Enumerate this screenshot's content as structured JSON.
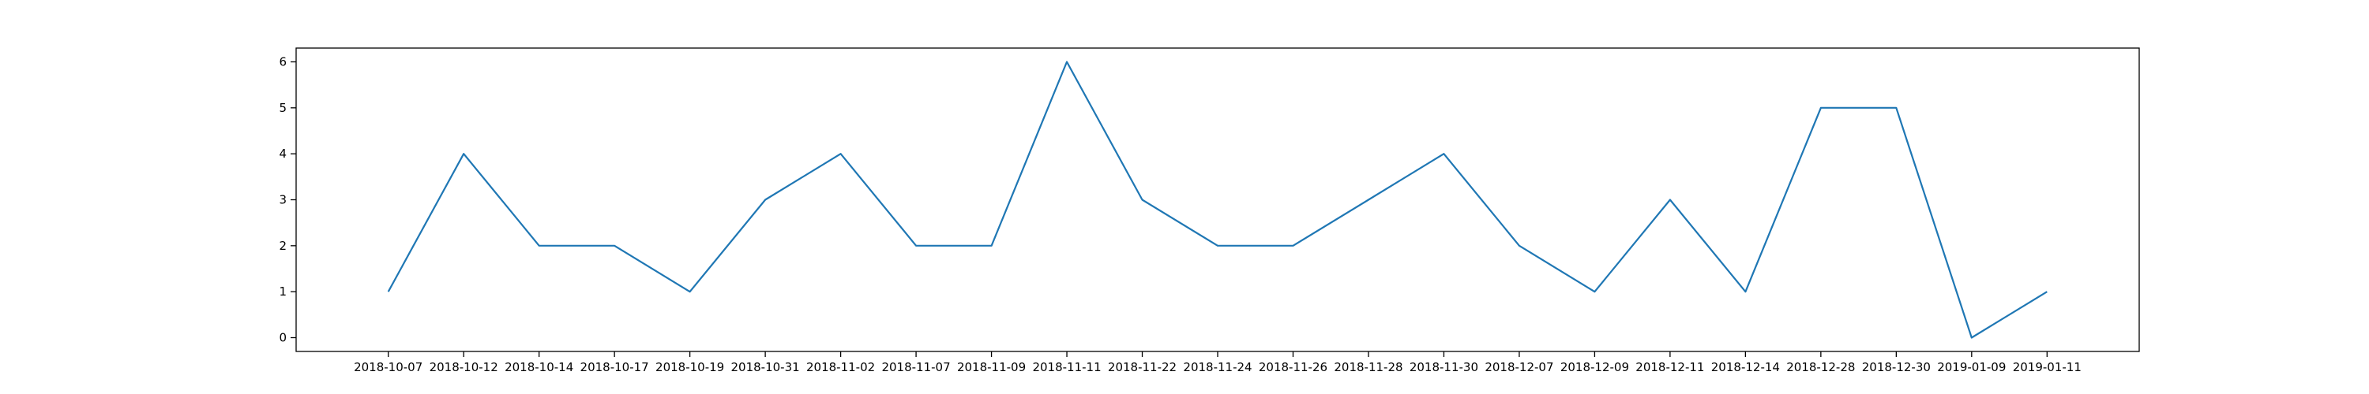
{
  "chart_data": {
    "type": "line",
    "categories": [
      "2018-10-07",
      "2018-10-12",
      "2018-10-14",
      "2018-10-17",
      "2018-10-19",
      "2018-10-31",
      "2018-11-02",
      "2018-11-07",
      "2018-11-09",
      "2018-11-11",
      "2018-11-22",
      "2018-11-24",
      "2018-11-26",
      "2018-11-28",
      "2018-11-30",
      "2018-12-07",
      "2018-12-09",
      "2018-12-11",
      "2018-12-14",
      "2018-12-28",
      "2018-12-30",
      "2019-01-09",
      "2019-01-11"
    ],
    "series": [
      {
        "values": [
          1,
          4,
          2,
          2,
          1,
          3,
          4,
          2,
          2,
          6,
          3,
          2,
          2,
          3,
          4,
          2,
          1,
          3,
          1,
          5,
          5,
          0,
          1
        ]
      }
    ],
    "yticks": [
      "0",
      "1",
      "2",
      "3",
      "4",
      "5",
      "6"
    ],
    "ylim": [
      -0.3,
      6.3
    ],
    "grid": false,
    "line_color": "#1f77b4"
  }
}
